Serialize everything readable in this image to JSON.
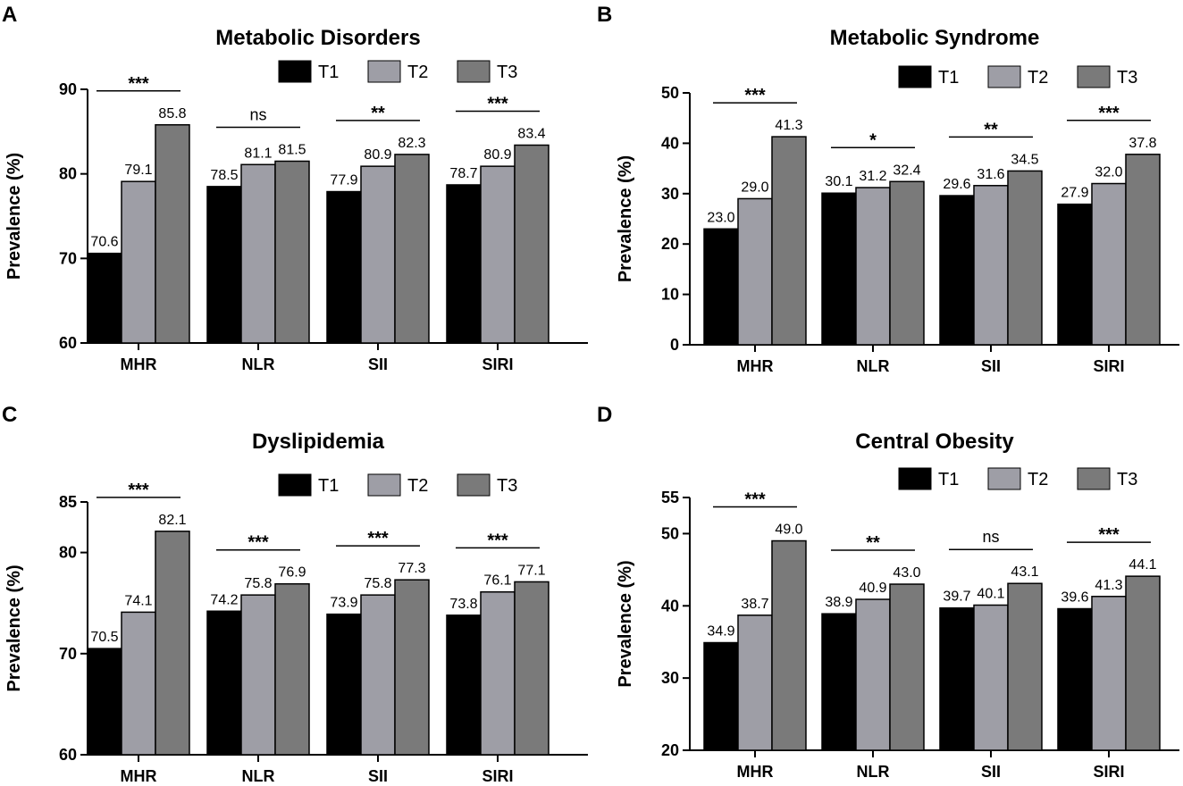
{
  "series_names": [
    "T1",
    "T2",
    "T3"
  ],
  "series_colors": [
    "#000000",
    "#9e9ea6",
    "#7a7a7a"
  ],
  "ylabel": "Prevalence (%)",
  "chart_data": [
    {
      "panel": "A",
      "type": "bar",
      "title": "Metabolic Disorders",
      "ylabel": "Prevalence (%)",
      "categories": [
        "MHR",
        "NLR",
        "SII",
        "SIRI"
      ],
      "ylim": [
        60,
        90
      ],
      "yticks": [
        60,
        70,
        80,
        90
      ],
      "series": [
        {
          "name": "T1",
          "values": [
            70.6,
            78.5,
            77.9,
            78.7
          ],
          "labels": [
            "70.6",
            "78.5",
            "77.9",
            "78.7"
          ]
        },
        {
          "name": "T2",
          "values": [
            79.1,
            81.1,
            80.9,
            80.9
          ],
          "labels": [
            "79.1",
            "81.1",
            "80.9",
            "80.9"
          ]
        },
        {
          "name": "T3",
          "values": [
            85.8,
            81.5,
            82.3,
            83.4
          ],
          "labels": [
            "85.8",
            "81.5",
            "82.3",
            "83.4"
          ]
        }
      ],
      "significance": [
        "***",
        "ns",
        "**",
        "***"
      ],
      "legend": "top-right"
    },
    {
      "panel": "B",
      "type": "bar",
      "title": "Metabolic Syndrome",
      "ylabel": "Prevalence (%)",
      "categories": [
        "MHR",
        "NLR",
        "SII",
        "SIRI"
      ],
      "ylim": [
        0,
        50
      ],
      "yticks": [
        0,
        10,
        20,
        30,
        40,
        50
      ],
      "series": [
        {
          "name": "T1",
          "values": [
            23.0,
            30.1,
            29.6,
            27.9
          ],
          "labels": [
            "23.0",
            "30.1",
            "29.6",
            "27.9"
          ]
        },
        {
          "name": "T2",
          "values": [
            29.0,
            31.2,
            31.6,
            32.0
          ],
          "labels": [
            "29.0",
            "31.2",
            "31.6",
            "32.0"
          ]
        },
        {
          "name": "T3",
          "values": [
            41.3,
            32.4,
            34.5,
            37.8
          ],
          "labels": [
            "41.3",
            "32.4",
            "34.5",
            "37.8"
          ]
        }
      ],
      "significance": [
        "***",
        "*",
        "**",
        "***"
      ],
      "legend": "top-right"
    },
    {
      "panel": "C",
      "type": "bar",
      "title": "Dyslipidemia",
      "ylabel": "Prevalence (%)",
      "categories": [
        "MHR",
        "NLR",
        "SII",
        "SIRI"
      ],
      "ylim": [
        60,
        85
      ],
      "yticks": [
        60,
        70,
        80,
        85
      ],
      "series": [
        {
          "name": "T1",
          "values": [
            70.5,
            74.2,
            73.9,
            73.8
          ],
          "labels": [
            "70.5",
            "74.2",
            "73.9",
            "73.8"
          ]
        },
        {
          "name": "T2",
          "values": [
            74.1,
            75.8,
            75.8,
            76.1
          ],
          "labels": [
            "74.1",
            "75.8",
            "75.8",
            "76.1"
          ]
        },
        {
          "name": "T3",
          "values": [
            82.1,
            76.9,
            77.3,
            77.1
          ],
          "labels": [
            "82.1",
            "76.9",
            "77.3",
            "77.1"
          ]
        }
      ],
      "significance": [
        "***",
        "***",
        "***",
        "***"
      ],
      "legend": "top-right"
    },
    {
      "panel": "D",
      "type": "bar",
      "title": "Central Obesity",
      "ylabel": "Prevalence (%)",
      "categories": [
        "MHR",
        "NLR",
        "SII",
        "SIRI"
      ],
      "ylim": [
        20,
        55
      ],
      "yticks": [
        20,
        30,
        40,
        50,
        55
      ],
      "series": [
        {
          "name": "T1",
          "values": [
            34.9,
            38.9,
            39.7,
            39.6
          ],
          "labels": [
            "34.9",
            "38.9",
            "39.7",
            "39.6"
          ]
        },
        {
          "name": "T2",
          "values": [
            38.7,
            40.9,
            40.1,
            41.3
          ],
          "labels": [
            "38.7",
            "40.9",
            "40.1",
            "41.3"
          ]
        },
        {
          "name": "T3",
          "values": [
            49.0,
            43.0,
            43.1,
            44.1
          ],
          "labels": [
            "49.0",
            "43.0",
            "43.1",
            "44.1"
          ]
        }
      ],
      "significance": [
        "***",
        "**",
        "ns",
        "***"
      ],
      "legend": "top-right"
    }
  ]
}
